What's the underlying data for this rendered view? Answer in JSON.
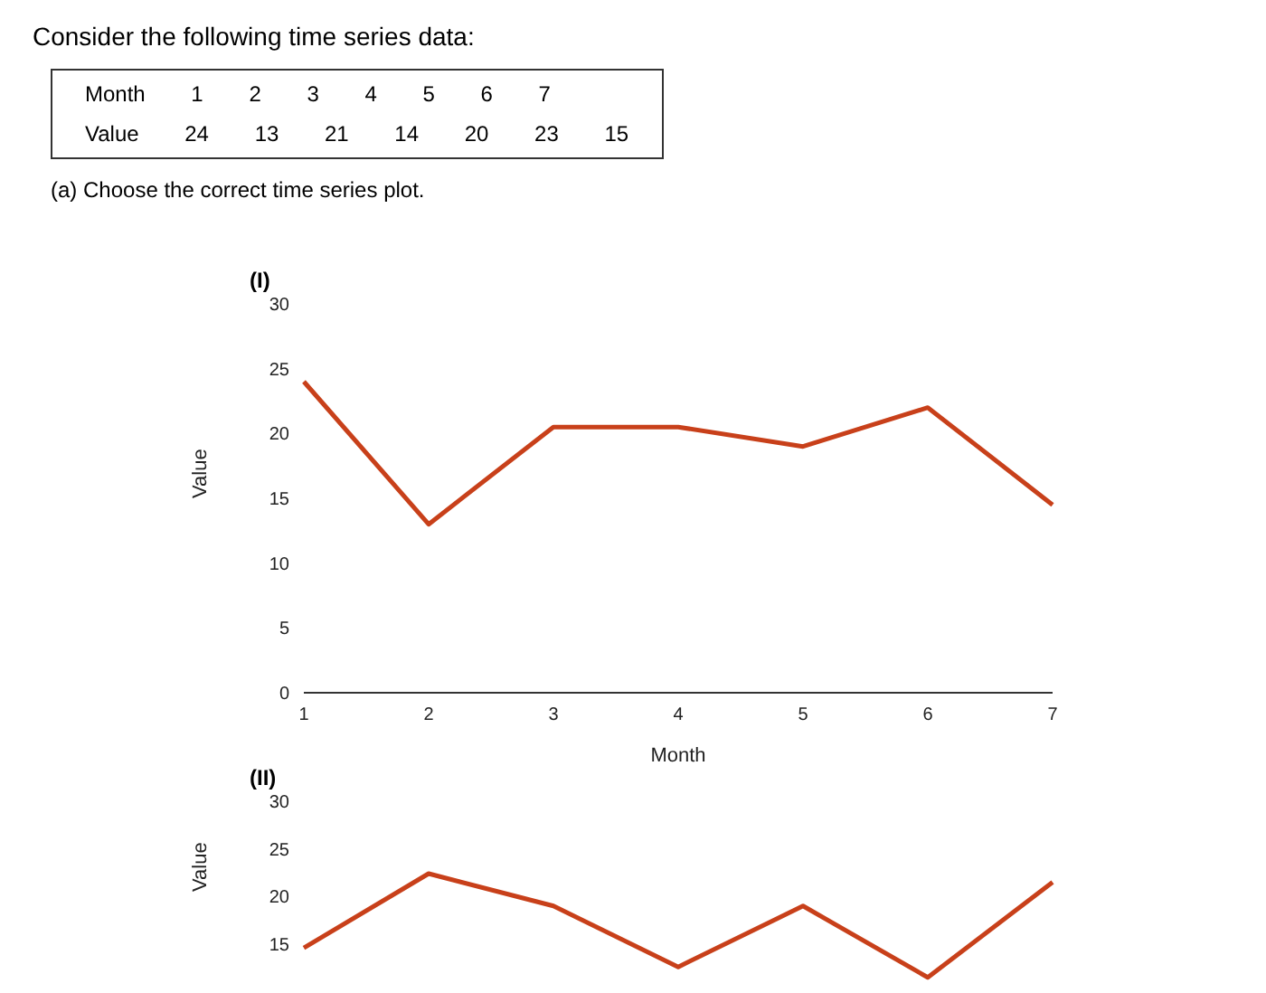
{
  "chart_data": [
    {
      "type": "other",
      "title": "Consider the following time series data:",
      "annotations": [
        "Month 1 2 3 4 5 6 7",
        "Value 24 13 21 14 20 23 15",
        "(a) Choose the correct time series plot."
      ]
    },
    {
      "type": "line",
      "title": "(I)",
      "xlabel": "Month",
      "ylabel": "Value",
      "categories": [
        "1",
        "2",
        "3",
        "4",
        "5",
        "6",
        "7"
      ],
      "series": [
        {
          "color": "#c8401a",
          "values": [
            24,
            13,
            20.5,
            20.5,
            19,
            22,
            14.5
          ]
        }
      ],
      "ylim": [
        0,
        30
      ],
      "yticks": [
        0,
        5,
        10,
        15,
        20,
        25,
        30
      ],
      "grid": false,
      "legend": false,
      "marker": "none",
      "line_style": "solid"
    },
    {
      "type": "line",
      "title": "(II)",
      "ylabel": "Value",
      "categories": [
        null,
        null,
        null,
        null,
        null,
        null,
        null
      ],
      "series": [
        {
          "color": "#c8401a",
          "values": [
            14.6,
            22.4,
            19,
            12.6,
            19,
            11.5,
            21.5
          ]
        }
      ],
      "ylim": [
        11,
        30
      ],
      "yticks": [
        15,
        20,
        25,
        30
      ],
      "tick_labels": "y",
      "grid": false,
      "legend": false,
      "marker": "none",
      "line_style": "solid"
    }
  ]
}
